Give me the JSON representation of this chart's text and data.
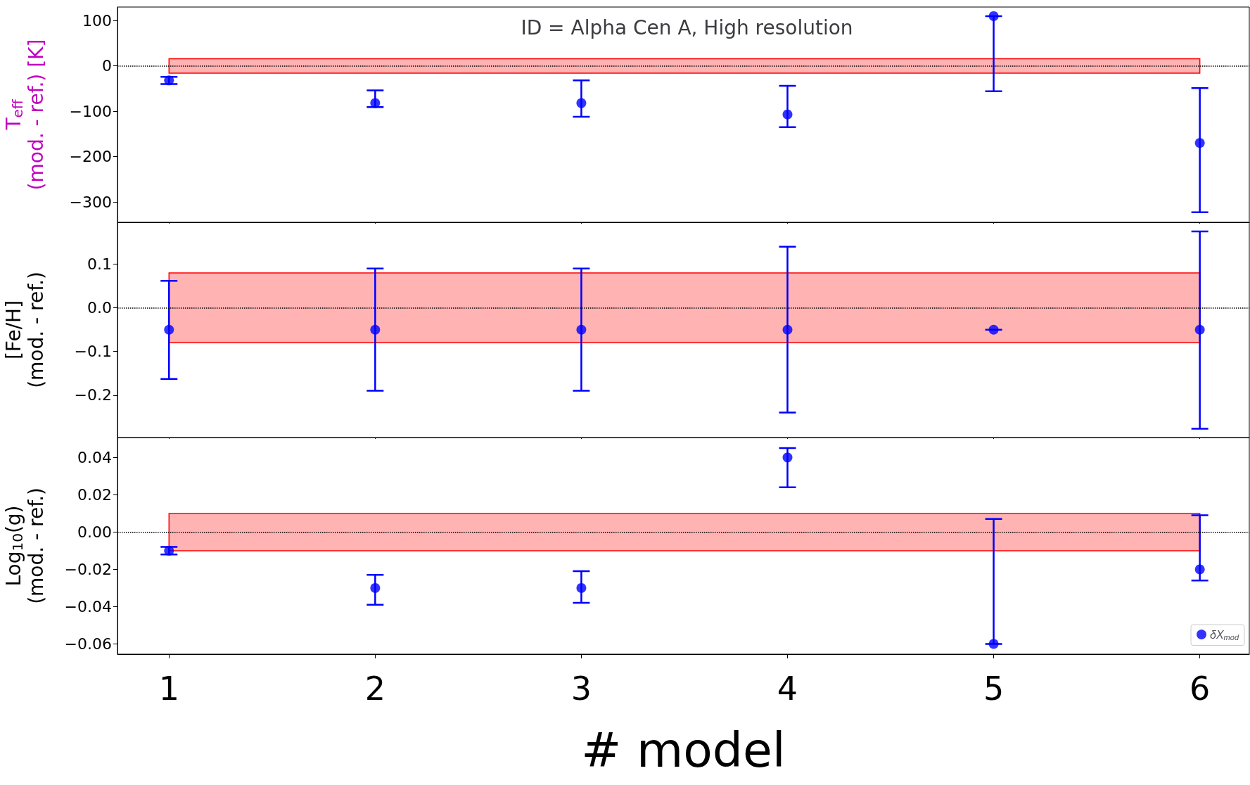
{
  "chart_data": [
    {
      "type": "scatter",
      "title": "ID = Alpha Cen A, High resolution",
      "ylabel": "T$_{eff}$\n(mod. - ref.) [K]",
      "x": [
        1,
        2,
        3,
        4,
        5,
        6
      ],
      "series": [
        {
          "color": "#0000ff",
          "values": [
            -32,
            -82,
            -82,
            -107,
            110,
            -170
          ],
          "errors": [
            [
              -40,
              -24
            ],
            [
              -91,
              -54
            ],
            [
              -112,
              -32
            ],
            [
              -135,
              -44
            ],
            [
              -56,
              110
            ],
            [
              -323,
              -49
            ]
          ]
        }
      ],
      "xlim": [
        0.75,
        6.24
      ],
      "xticks": [
        1,
        2,
        3,
        4,
        5,
        6
      ],
      "ylim": [
        -345,
        130
      ],
      "yticks": [
        {
          "value": -300,
          "label": "−300"
        },
        {
          "value": -200,
          "label": "−200"
        },
        {
          "value": -100,
          "label": "−100"
        },
        0,
        100
      ],
      "ref_lines": [
        {
          "axis": "y",
          "value": 0,
          "color": "#000000",
          "line_style": "dotted"
        }
      ],
      "bands": [
        {
          "axis": "y",
          "from": -16,
          "to": 16,
          "color": "#ffb3b3"
        }
      ],
      "marker": "circle",
      "grid": false,
      "tick_labels": "y"
    },
    {
      "type": "scatter",
      "ylabel": "[Fe/H]\n(mod. - ref.)",
      "x": [
        1,
        2,
        3,
        4,
        5,
        6
      ],
      "series": [
        {
          "color": "#0000ff",
          "values": [
            -0.05,
            -0.05,
            -0.05,
            -0.05,
            -0.05,
            -0.05
          ],
          "errors": [
            [
              -0.163,
              0.062
            ],
            [
              -0.19,
              0.09
            ],
            [
              -0.19,
              0.09
            ],
            [
              -0.24,
              0.14
            ],
            [
              -0.05,
              -0.05
            ],
            [
              -0.277,
              0.175
            ]
          ]
        }
      ],
      "xlim": [
        0.75,
        6.24
      ],
      "xticks": [
        1,
        2,
        3,
        4,
        5,
        6
      ],
      "ylim": [
        -0.297,
        0.196
      ],
      "yticks": [
        {
          "value": -0.2,
          "label": "−0.2"
        },
        {
          "value": -0.1,
          "label": "−0.1"
        },
        {
          "value": 0,
          "label": "0.0"
        },
        0.1
      ],
      "ref_lines": [
        {
          "axis": "y",
          "value": 0,
          "color": "#000000",
          "line_style": "dotted"
        }
      ],
      "bands": [
        {
          "axis": "y",
          "from": -0.08,
          "to": 0.08,
          "color": "#ffb3b3"
        }
      ],
      "marker": "circle",
      "grid": false,
      "tick_labels": "y"
    },
    {
      "type": "scatter",
      "ylabel": "Log$_{10}$(g)\n(mod. - ref.)",
      "xlabel": "# model",
      "x": [
        1,
        2,
        3,
        4,
        5,
        6
      ],
      "series": [
        {
          "name": "δX$_{mod}$",
          "color": "#0000ff",
          "values": [
            -0.01,
            -0.03,
            -0.03,
            0.04,
            -0.06,
            -0.02
          ],
          "errors": [
            [
              -0.012,
              -0.008
            ],
            [
              -0.039,
              -0.023
            ],
            [
              -0.038,
              -0.021
            ],
            [
              0.024,
              0.045
            ],
            [
              -0.06,
              0.007
            ],
            [
              -0.026,
              0.009
            ]
          ]
        }
      ],
      "xlim": [
        0.75,
        6.24
      ],
      "xticks": [
        1,
        2,
        3,
        4,
        5,
        6
      ],
      "ylim": [
        -0.0655,
        0.0507
      ],
      "yticks": [
        {
          "value": -0.06,
          "label": "−0.06"
        },
        {
          "value": -0.04,
          "label": "−0.04"
        },
        {
          "value": -0.02,
          "label": "−0.02"
        },
        {
          "value": 0,
          "label": "0.00"
        },
        0.02,
        0.04
      ],
      "ref_lines": [
        {
          "axis": "y",
          "value": 0,
          "color": "#000000",
          "line_style": "dotted"
        }
      ],
      "bands": [
        {
          "axis": "y",
          "from": -0.01,
          "to": 0.01,
          "color": "#ffb3b3"
        }
      ],
      "marker": "circle",
      "grid": false,
      "legend": "bottom right"
    }
  ]
}
